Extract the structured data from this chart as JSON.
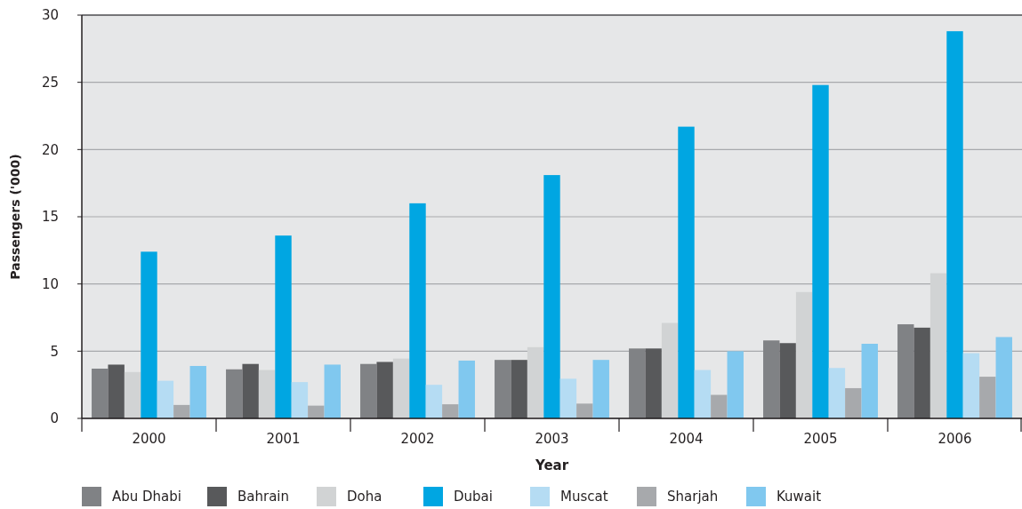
{
  "chart_data": {
    "type": "bar",
    "xlabel": "Year",
    "ylabel": "Passengers ('000)",
    "categories": [
      "2000",
      "2001",
      "2002",
      "2003",
      "2004",
      "2005",
      "2006"
    ],
    "series": [
      {
        "name": "Abu Dhabi",
        "color": "#808285",
        "values": [
          3.7,
          3.65,
          4.05,
          4.35,
          5.2,
          5.8,
          7.0
        ]
      },
      {
        "name": "Bahrain",
        "color": "#58595b",
        "values": [
          4.0,
          4.05,
          4.2,
          4.35,
          5.2,
          5.6,
          6.75
        ]
      },
      {
        "name": "Doha",
        "color": "#d1d3d4",
        "values": [
          3.45,
          3.6,
          4.45,
          5.3,
          7.1,
          9.4,
          10.8
        ]
      },
      {
        "name": "Dubai",
        "color": "#00a6e2",
        "values": [
          12.4,
          13.6,
          16.0,
          18.1,
          21.7,
          24.8,
          28.8
        ]
      },
      {
        "name": "Muscat",
        "color": "#b5dcf3",
        "values": [
          2.8,
          2.7,
          2.5,
          2.95,
          3.6,
          3.75,
          4.85
        ]
      },
      {
        "name": "Sharjah",
        "color": "#a7a9ac",
        "values": [
          1.0,
          0.95,
          1.05,
          1.1,
          1.75,
          2.25,
          3.1
        ]
      },
      {
        "name": "Kuwait",
        "color": "#80c8ef",
        "values": [
          3.9,
          4.0,
          4.3,
          4.35,
          5.0,
          5.55,
          6.05
        ]
      }
    ],
    "ylim": [
      0,
      30
    ],
    "yticks": [
      0,
      5,
      10,
      15,
      20,
      25,
      30
    ],
    "grid": "y",
    "legend": "bottom"
  }
}
